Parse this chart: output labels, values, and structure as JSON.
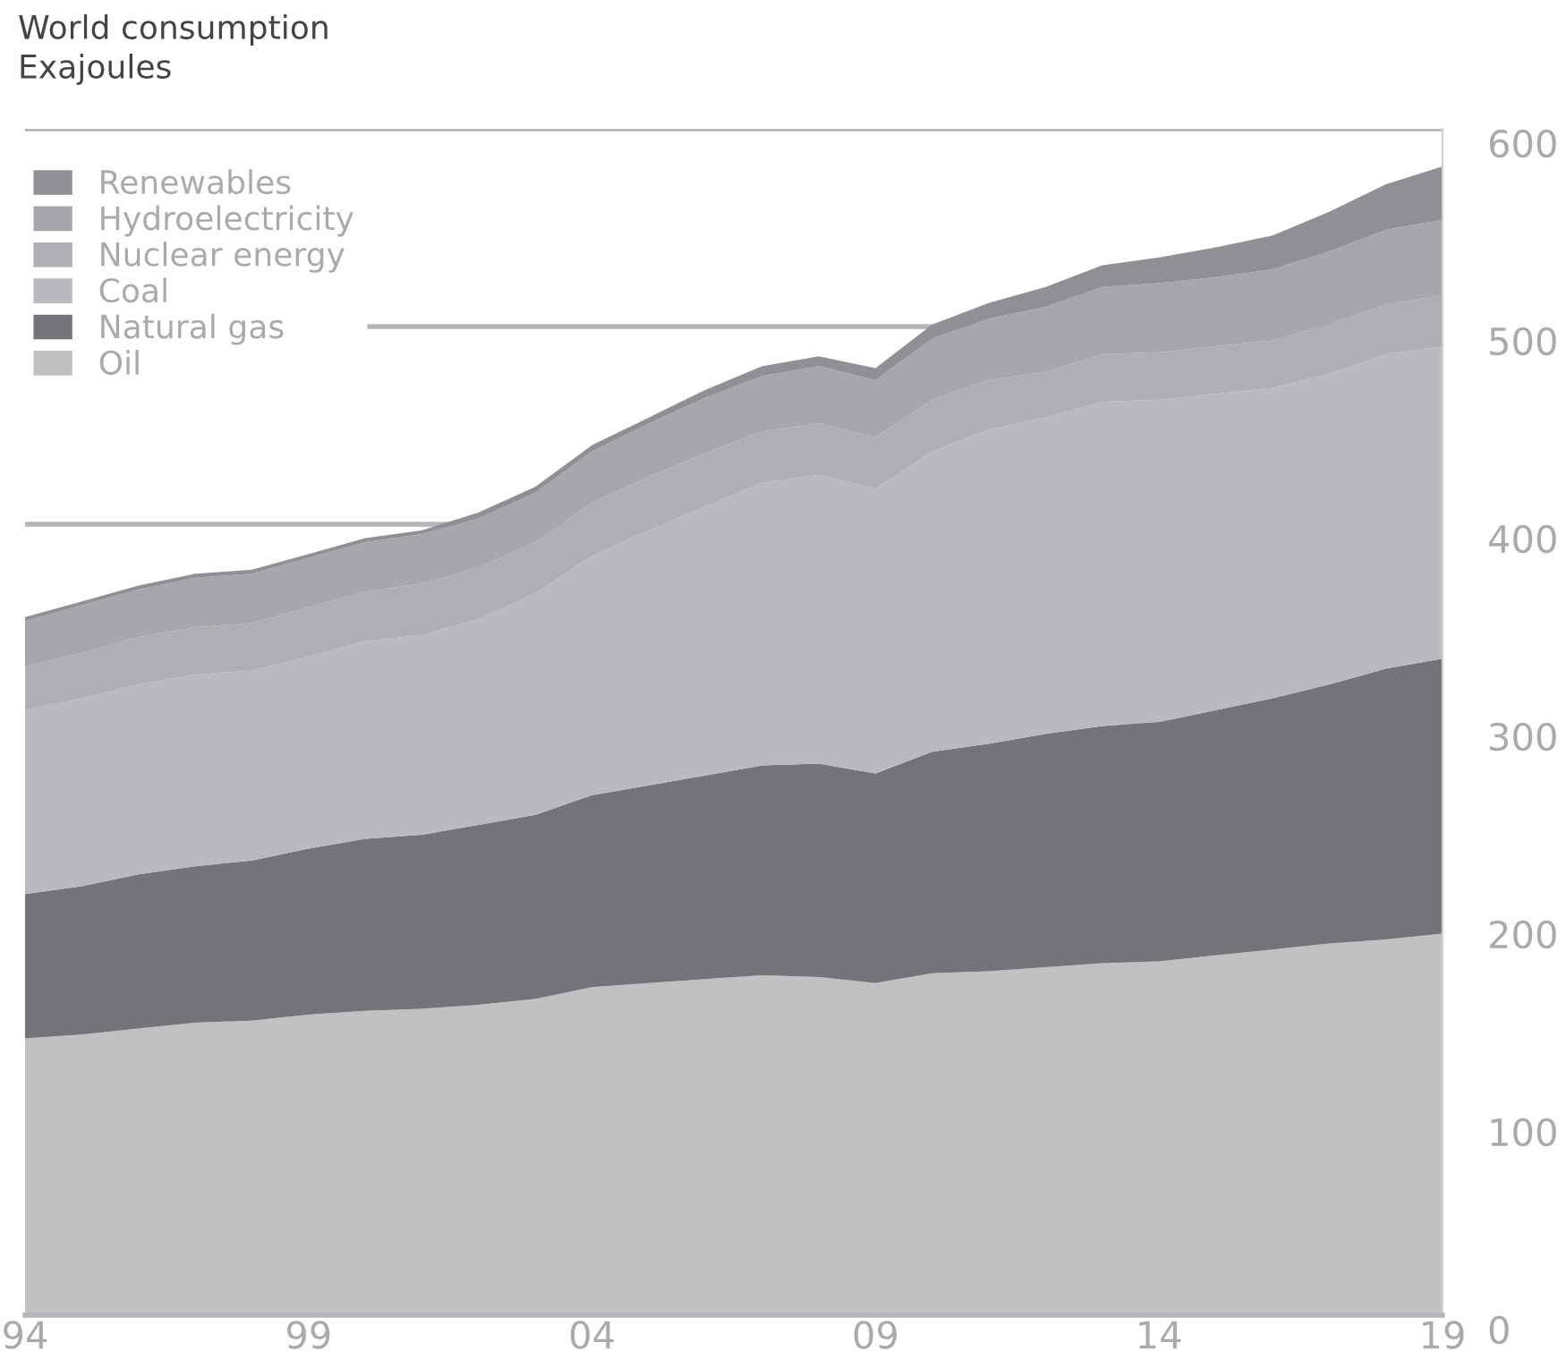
{
  "chart_data": {
    "type": "area",
    "stacked": true,
    "title": "World consumption",
    "subtitle": "Exajoules",
    "x": [
      1994,
      1995,
      1996,
      1997,
      1998,
      1999,
      2000,
      2001,
      2002,
      2003,
      2004,
      2005,
      2006,
      2007,
      2008,
      2009,
      2010,
      2011,
      2012,
      2013,
      2014,
      2015,
      2016,
      2017,
      2018,
      2019
    ],
    "series": [
      {
        "name": "Oil",
        "color": "#c0c1c3",
        "values": [
          140,
          142,
          145,
          148,
          149,
          152,
          154,
          155,
          157,
          160,
          166,
          168,
          170,
          172,
          171,
          168,
          173,
          174,
          176,
          178,
          179,
          182,
          185,
          188,
          190,
          193
        ]
      },
      {
        "name": "Natural gas",
        "color": "#737478",
        "values": [
          73,
          75,
          78,
          79,
          81,
          84,
          87,
          88,
          91,
          93,
          97,
          100,
          103,
          106,
          108,
          106,
          112,
          115,
          118,
          120,
          121,
          124,
          127,
          131,
          137,
          139
        ]
      },
      {
        "name": "Coal",
        "color": "#b9babd",
        "values": [
          93,
          95,
          96,
          97,
          96,
          97,
          100,
          101,
          104,
          112,
          121,
          129,
          136,
          143,
          146,
          144,
          152,
          159,
          160,
          164,
          163,
          160,
          157,
          157,
          159,
          158
        ]
      },
      {
        "name": "Nuclear energy",
        "color": "#aeafb2",
        "values": [
          22,
          23,
          24,
          24,
          24,
          25,
          25,
          26,
          26,
          26,
          27,
          27,
          27,
          26,
          26,
          26,
          26,
          25,
          23,
          24,
          24,
          24,
          24,
          25,
          25,
          26
        ]
      },
      {
        "name": "Hydroelectricity",
        "color": "#a6a7aa",
        "values": [
          23,
          24,
          24,
          25,
          25,
          25,
          25,
          25,
          25,
          25,
          26,
          27,
          28,
          28,
          29,
          29,
          31,
          31,
          33,
          34,
          35,
          35,
          36,
          37,
          38,
          38
        ]
      },
      {
        "name": "Renewables",
        "color": "#8f9094",
        "values": [
          2,
          2,
          2,
          2,
          2,
          2,
          2,
          2,
          3,
          3,
          3,
          3,
          4,
          5,
          5,
          6,
          7,
          8,
          10,
          11,
          13,
          15,
          17,
          20,
          23,
          27
        ]
      }
    ],
    "xlim": [
      1994,
      2019
    ],
    "xticks": [
      {
        "value": 1994,
        "label": "94"
      },
      {
        "value": 1999,
        "label": "99"
      },
      {
        "value": 2004,
        "label": "04"
      },
      {
        "value": 2009,
        "label": "09"
      },
      {
        "value": 2014,
        "label": "14"
      },
      {
        "value": 2019,
        "label": "19"
      }
    ],
    "ylim": [
      0,
      600
    ],
    "yticks": [
      0,
      100,
      200,
      300,
      400,
      500,
      600
    ],
    "grid": "y",
    "legend": "top left"
  }
}
